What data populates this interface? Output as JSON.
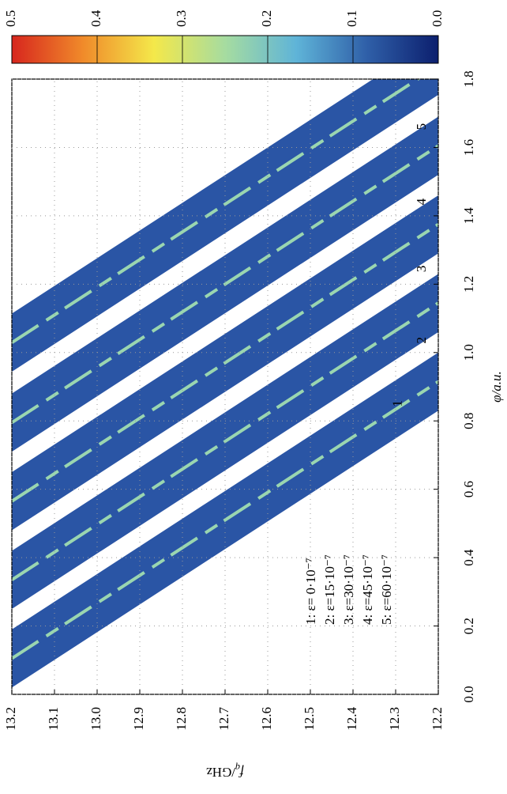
{
  "chart_data": {
    "type": "heatmap",
    "xlabel": "φ/a.u.",
    "ylabel": {
      "symbol": "f",
      "sub": "q",
      "unit": "/GHz"
    },
    "xlim": [
      0,
      1.8
    ],
    "xticks": [
      {
        "value": 0,
        "label": "0.0"
      },
      0.2,
      0.4,
      0.6,
      0.8,
      {
        "value": 1,
        "label": "1.0"
      },
      1.2,
      1.4,
      1.6,
      1.8
    ],
    "ylim": [
      12.2,
      13.2
    ],
    "yticks": [
      12.2,
      12.3,
      12.4,
      12.5,
      12.6,
      12.7,
      12.8,
      12.9,
      {
        "value": 13,
        "label": "13.0"
      },
      13.1,
      13.2
    ],
    "grid": true,
    "colorbar": {
      "lim": [
        0,
        0.5
      ],
      "ticks": [
        {
          "value": 0,
          "label": "0.0"
        },
        0.1,
        0.2,
        0.3,
        0.4,
        0.5
      ],
      "colors": [
        "#0c1f6e",
        "#2f5fa8",
        "#5fb4d8",
        "#a6dca0",
        "#f4e84a",
        "#f08a2a",
        "#d7261e"
      ]
    },
    "band_labels": [
      "1",
      "2",
      "3",
      "4",
      "5"
    ],
    "legend": [
      "1: ε=  0·10⁻⁷",
      "2: ε=15·10⁻⁷",
      "3: ε=30·10⁻⁷",
      "4: ε=45·10⁻⁷",
      "5: ε=60·10⁻⁷"
    ]
  }
}
